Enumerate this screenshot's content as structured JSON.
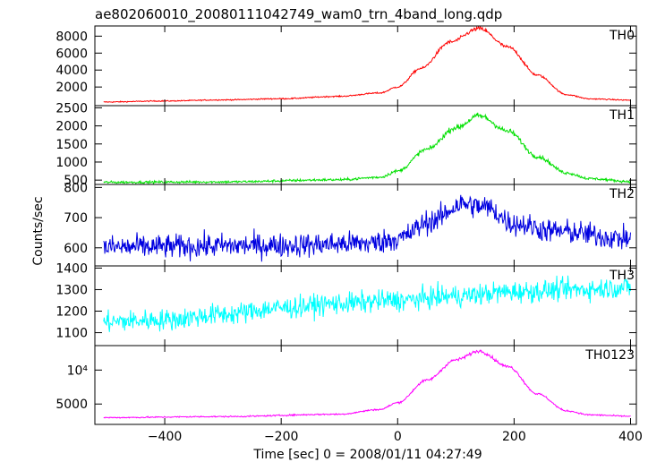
{
  "chart_data": {
    "type": "line",
    "title": "ae802060010_20080111042749_wam0_trn_4band_long.qdp",
    "xlabel": "Time [sec] 0 = 2008/01/11 04:27:49",
    "ylabel": "Counts/sec",
    "xlim": [
      -520,
      410
    ],
    "x_ticks": [
      {
        "v": -400,
        "label": "−400"
      },
      {
        "v": -200,
        "label": "−200"
      },
      {
        "v": 0,
        "label": "0"
      },
      {
        "v": 200,
        "label": "200"
      },
      {
        "v": 400,
        "label": "400"
      }
    ],
    "x_range_data": [
      -505,
      400
    ],
    "panels": [
      {
        "name": "TH0",
        "color": "#ff0000",
        "ylim": [
          -200,
          9200
        ],
        "ticks": [
          {
            "v": 2000,
            "label": "2000"
          },
          {
            "v": 4000,
            "label": "4000"
          },
          {
            "v": 6000,
            "label": "6000"
          },
          {
            "v": 8000,
            "label": "8000"
          }
        ],
        "curve": [
          [
            -505,
            230
          ],
          [
            -400,
            350
          ],
          [
            -300,
            480
          ],
          [
            -200,
            620
          ],
          [
            -100,
            900
          ],
          [
            -30,
            1300
          ],
          [
            0,
            2000
          ],
          [
            40,
            4200
          ],
          [
            90,
            7300
          ],
          [
            140,
            8900
          ],
          [
            190,
            6700
          ],
          [
            240,
            3400
          ],
          [
            290,
            1100
          ],
          [
            330,
            600
          ],
          [
            400,
            450
          ]
        ],
        "noise": 0.015,
        "noise_floor": 40
      },
      {
        "name": "TH1",
        "color": "#00e000",
        "ylim": [
          380,
          2560
        ],
        "ticks": [
          {
            "v": 500,
            "label": "500"
          },
          {
            "v": 1000,
            "label": "1000"
          },
          {
            "v": 1500,
            "label": "1500"
          },
          {
            "v": 2000,
            "label": "2000"
          },
          {
            "v": 2500,
            "label": "2500"
          }
        ],
        "curve": [
          [
            -505,
            440
          ],
          [
            -300,
            450
          ],
          [
            -100,
            510
          ],
          [
            -30,
            580
          ],
          [
            0,
            750
          ],
          [
            50,
            1350
          ],
          [
            100,
            1950
          ],
          [
            140,
            2280
          ],
          [
            190,
            1850
          ],
          [
            240,
            1150
          ],
          [
            290,
            700
          ],
          [
            330,
            540
          ],
          [
            400,
            460
          ]
        ],
        "noise": 0.02,
        "noise_floor": 15
      },
      {
        "name": "TH2",
        "color": "#0000e0",
        "ylim": [
          540,
          810
        ],
        "ticks": [
          {
            "v": 600,
            "label": "600"
          },
          {
            "v": 700,
            "label": "700"
          },
          {
            "v": 800,
            "label": "800"
          }
        ],
        "curve": [
          [
            -505,
            602
          ],
          [
            -200,
            608
          ],
          [
            -50,
            615
          ],
          [
            0,
            630
          ],
          [
            60,
            690
          ],
          [
            110,
            745
          ],
          [
            150,
            735
          ],
          [
            200,
            680
          ],
          [
            270,
            655
          ],
          [
            400,
            630
          ]
        ],
        "noise": 0,
        "noise_floor": 28
      },
      {
        "name": "TH3",
        "color": "#00ffff",
        "ylim": [
          1040,
          1410
        ],
        "ticks": [
          {
            "v": 1100,
            "label": "1100"
          },
          {
            "v": 1200,
            "label": "1200"
          },
          {
            "v": 1300,
            "label": "1300"
          },
          {
            "v": 1400,
            "label": "1400"
          }
        ],
        "curve": [
          [
            -505,
            1150
          ],
          [
            -400,
            1160
          ],
          [
            -300,
            1185
          ],
          [
            -200,
            1215
          ],
          [
            -100,
            1235
          ],
          [
            0,
            1250
          ],
          [
            100,
            1270
          ],
          [
            200,
            1290
          ],
          [
            300,
            1300
          ],
          [
            400,
            1310
          ]
        ],
        "noise": 0,
        "noise_floor": 35
      },
      {
        "name": "TH0123",
        "color": "#ff00ff",
        "ylim": [
          2000,
          13600
        ],
        "ticks": [
          {
            "v": 5000,
            "label": "5000"
          },
          {
            "v": 10000,
            "label": "10⁴"
          }
        ],
        "curve": [
          [
            -505,
            3000
          ],
          [
            -300,
            3150
          ],
          [
            -100,
            3500
          ],
          [
            -30,
            4200
          ],
          [
            0,
            5200
          ],
          [
            50,
            8500
          ],
          [
            100,
            11500
          ],
          [
            140,
            12800
          ],
          [
            190,
            10500
          ],
          [
            240,
            6500
          ],
          [
            290,
            4000
          ],
          [
            330,
            3400
          ],
          [
            400,
            3200
          ]
        ],
        "noise": 0.01,
        "noise_floor": 40
      }
    ]
  }
}
